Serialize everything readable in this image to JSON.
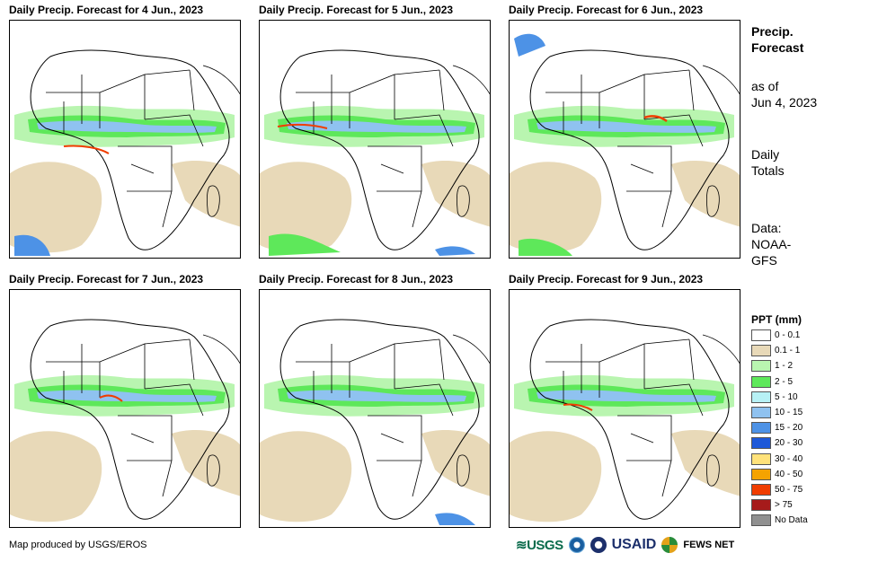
{
  "panels": [
    {
      "title": "Daily Precip. Forecast for 4 Jun., 2023"
    },
    {
      "title": "Daily Precip. Forecast for 5 Jun., 2023"
    },
    {
      "title": "Daily Precip. Forecast for 6 Jun., 2023"
    },
    {
      "title": "Daily Precip. Forecast for 7 Jun., 2023"
    },
    {
      "title": "Daily Precip. Forecast for 8 Jun., 2023"
    },
    {
      "title": "Daily Precip. Forecast for 9 Jun., 2023"
    }
  ],
  "sidebar": {
    "title_line1": "Precip.",
    "title_line2": "Forecast",
    "asof_line1": "as of",
    "asof_line2": "Jun 4, 2023",
    "totals_line1": "Daily",
    "totals_line2": "Totals",
    "data_line1": "Data:",
    "data_line2": "NOAA-",
    "data_line3": "GFS"
  },
  "legend": {
    "title": "PPT (mm)",
    "items": [
      {
        "label": "0 - 0.1",
        "color": "#ffffff"
      },
      {
        "label": "0.1 - 1",
        "color": "#e8d9b8"
      },
      {
        "label": "1 - 2",
        "color": "#b9f5b0"
      },
      {
        "label": "2 - 5",
        "color": "#5ee85a"
      },
      {
        "label": "5 - 10",
        "color": "#b7f1f5"
      },
      {
        "label": "10 - 15",
        "color": "#8fc2f0"
      },
      {
        "label": "15 - 20",
        "color": "#4d92e6"
      },
      {
        "label": "20 - 30",
        "color": "#1e58d8"
      },
      {
        "label": "30 - 40",
        "color": "#ffe27a"
      },
      {
        "label": "40 - 50",
        "color": "#f5a300"
      },
      {
        "label": "50 - 75",
        "color": "#f03d00"
      },
      {
        "label": "> 75",
        "color": "#a61b1b"
      },
      {
        "label": "No Data",
        "color": "#909090"
      }
    ]
  },
  "footer": {
    "credit": "Map produced by USGS/EROS",
    "logo_usgs": "≋USGS",
    "logo_usaid": "USAID",
    "logo_fews": "FEWS NET"
  }
}
